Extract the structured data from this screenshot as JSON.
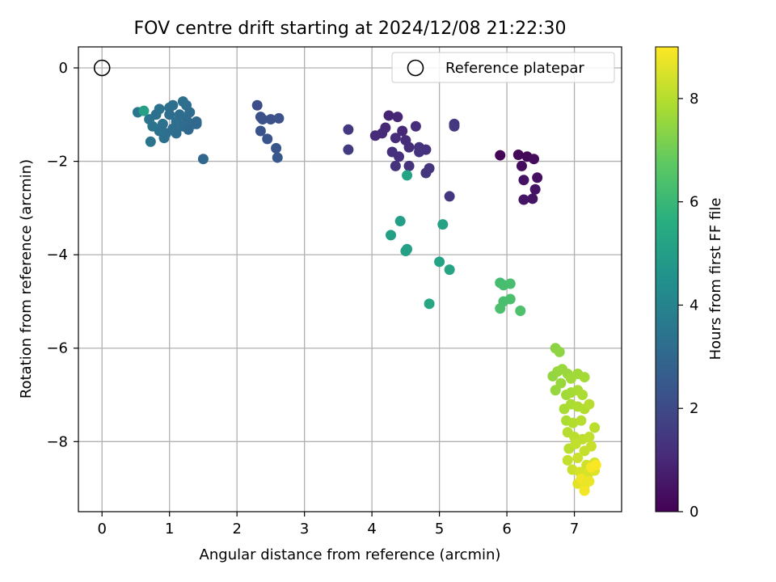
{
  "chart_data": {
    "type": "scatter",
    "title": "FOV centre drift starting at 2024/12/08 21:22:30",
    "xlabel": "Angular distance from reference (arcmin)",
    "ylabel": "Rotation from reference (arcmin)",
    "xlim": [
      -0.35,
      7.7
    ],
    "ylim": [
      -9.5,
      0.45
    ],
    "xticks": [
      0,
      1,
      2,
      3,
      4,
      5,
      6,
      7
    ],
    "yticks": [
      0,
      -2,
      -4,
      -6,
      -8
    ],
    "xtick_labels": [
      "0",
      "1",
      "2",
      "3",
      "4",
      "5",
      "6",
      "7"
    ],
    "ytick_labels": [
      "0",
      "−2",
      "−4",
      "−6",
      "−8"
    ],
    "grid": true,
    "legend": {
      "position": "top-right",
      "label": "Reference platepar",
      "marker": "open-circle"
    },
    "reference_point": {
      "x": 0,
      "y": 0
    },
    "colorbar": {
      "label": "Hours from first FF file",
      "colormap": "viridis",
      "range": [
        0,
        9
      ],
      "ticks": [
        0,
        2,
        4,
        6,
        8
      ],
      "tick_labels": [
        "0",
        "2",
        "4",
        "6",
        "8"
      ]
    },
    "points": [
      {
        "x": 5.9,
        "y": -1.87,
        "c": 0.1
      },
      {
        "x": 6.17,
        "y": -1.86,
        "c": 0.15
      },
      {
        "x": 6.3,
        "y": -1.9,
        "c": 0.2
      },
      {
        "x": 6.4,
        "y": -1.95,
        "c": 0.25
      },
      {
        "x": 6.22,
        "y": -2.1,
        "c": 0.3
      },
      {
        "x": 6.45,
        "y": -2.35,
        "c": 0.35
      },
      {
        "x": 6.25,
        "y": -2.4,
        "c": 0.4
      },
      {
        "x": 6.42,
        "y": -2.6,
        "c": 0.45
      },
      {
        "x": 6.38,
        "y": -2.8,
        "c": 0.5
      },
      {
        "x": 6.25,
        "y": -2.82,
        "c": 0.5
      },
      {
        "x": 4.25,
        "y": -1.02,
        "c": 0.9
      },
      {
        "x": 4.38,
        "y": -1.05,
        "c": 0.95
      },
      {
        "x": 4.2,
        "y": -1.28,
        "c": 1.0
      },
      {
        "x": 4.45,
        "y": -1.35,
        "c": 1.0
      },
      {
        "x": 4.05,
        "y": -1.45,
        "c": 1.05
      },
      {
        "x": 4.15,
        "y": -1.4,
        "c": 1.05
      },
      {
        "x": 4.35,
        "y": -1.5,
        "c": 1.1
      },
      {
        "x": 4.5,
        "y": -1.55,
        "c": 1.1
      },
      {
        "x": 4.65,
        "y": -1.25,
        "c": 1.15
      },
      {
        "x": 4.55,
        "y": -1.7,
        "c": 1.15
      },
      {
        "x": 4.3,
        "y": -1.8,
        "c": 1.2
      },
      {
        "x": 4.4,
        "y": -1.9,
        "c": 1.2
      },
      {
        "x": 4.7,
        "y": -1.7,
        "c": 1.25
      },
      {
        "x": 4.8,
        "y": -1.75,
        "c": 1.25
      },
      {
        "x": 4.35,
        "y": -2.1,
        "c": 1.3
      },
      {
        "x": 4.55,
        "y": -2.1,
        "c": 1.3
      },
      {
        "x": 4.8,
        "y": -2.25,
        "c": 1.35
      },
      {
        "x": 4.85,
        "y": -2.15,
        "c": 1.35
      },
      {
        "x": 5.15,
        "y": -2.75,
        "c": 1.4
      },
      {
        "x": 5.22,
        "y": -1.2,
        "c": 1.4
      },
      {
        "x": 5.22,
        "y": -1.25,
        "c": 1.45
      },
      {
        "x": 3.65,
        "y": -1.32,
        "c": 1.5
      },
      {
        "x": 3.65,
        "y": -1.75,
        "c": 1.55
      },
      {
        "x": 4.7,
        "y": -1.8,
        "c": 1.3
      },
      {
        "x": 2.3,
        "y": -0.8,
        "c": 2.1
      },
      {
        "x": 2.35,
        "y": -1.05,
        "c": 2.15
      },
      {
        "x": 2.38,
        "y": -1.1,
        "c": 2.2
      },
      {
        "x": 2.5,
        "y": -1.1,
        "c": 2.2
      },
      {
        "x": 2.62,
        "y": -1.08,
        "c": 2.25
      },
      {
        "x": 2.35,
        "y": -1.35,
        "c": 2.3
      },
      {
        "x": 2.45,
        "y": -1.52,
        "c": 2.35
      },
      {
        "x": 2.58,
        "y": -1.72,
        "c": 2.4
      },
      {
        "x": 2.6,
        "y": -1.92,
        "c": 2.45
      },
      {
        "x": 0.53,
        "y": -0.95,
        "c": 3.5
      },
      {
        "x": 0.7,
        "y": -1.1,
        "c": 3.45
      },
      {
        "x": 0.85,
        "y": -0.88,
        "c": 3.4
      },
      {
        "x": 1.0,
        "y": -0.85,
        "c": 3.35
      },
      {
        "x": 1.05,
        "y": -0.8,
        "c": 3.3
      },
      {
        "x": 1.2,
        "y": -0.72,
        "c": 3.3
      },
      {
        "x": 1.25,
        "y": -0.8,
        "c": 3.25
      },
      {
        "x": 0.75,
        "y": -1.25,
        "c": 3.4
      },
      {
        "x": 0.9,
        "y": -1.2,
        "c": 3.35
      },
      {
        "x": 0.95,
        "y": -1.4,
        "c": 3.3
      },
      {
        "x": 0.92,
        "y": -1.5,
        "c": 3.3
      },
      {
        "x": 1.05,
        "y": -1.3,
        "c": 3.25
      },
      {
        "x": 1.1,
        "y": -1.15,
        "c": 3.25
      },
      {
        "x": 1.15,
        "y": -1.0,
        "c": 3.2
      },
      {
        "x": 1.2,
        "y": -1.25,
        "c": 3.2
      },
      {
        "x": 1.25,
        "y": -1.1,
        "c": 3.15
      },
      {
        "x": 1.3,
        "y": -0.95,
        "c": 3.15
      },
      {
        "x": 1.35,
        "y": -1.2,
        "c": 3.1
      },
      {
        "x": 1.4,
        "y": -1.15,
        "c": 3.1
      },
      {
        "x": 1.28,
        "y": -1.32,
        "c": 3.05
      },
      {
        "x": 1.0,
        "y": -1.0,
        "c": 3.2
      },
      {
        "x": 0.8,
        "y": -1.0,
        "c": 3.3
      },
      {
        "x": 0.72,
        "y": -1.58,
        "c": 3.45
      },
      {
        "x": 1.5,
        "y": -1.95,
        "c": 3.0
      },
      {
        "x": 1.4,
        "y": -1.2,
        "c": 3.05
      },
      {
        "x": 1.1,
        "y": -1.4,
        "c": 3.2
      },
      {
        "x": 0.85,
        "y": -1.35,
        "c": 3.35
      },
      {
        "x": 0.62,
        "y": -0.92,
        "c": 5.1
      },
      {
        "x": 4.52,
        "y": -2.3,
        "c": 5.2
      },
      {
        "x": 4.42,
        "y": -3.28,
        "c": 5.0
      },
      {
        "x": 4.28,
        "y": -3.58,
        "c": 5.05
      },
      {
        "x": 4.52,
        "y": -3.88,
        "c": 5.1
      },
      {
        "x": 4.5,
        "y": -3.92,
        "c": 5.1
      },
      {
        "x": 5.05,
        "y": -3.35,
        "c": 5.15
      },
      {
        "x": 5.0,
        "y": -4.15,
        "c": 5.2
      },
      {
        "x": 5.15,
        "y": -4.32,
        "c": 5.25
      },
      {
        "x": 4.85,
        "y": -5.05,
        "c": 5.3
      },
      {
        "x": 5.9,
        "y": -4.6,
        "c": 6.2
      },
      {
        "x": 5.95,
        "y": -4.65,
        "c": 6.25
      },
      {
        "x": 6.05,
        "y": -4.62,
        "c": 6.3
      },
      {
        "x": 5.95,
        "y": -5.0,
        "c": 6.3
      },
      {
        "x": 6.05,
        "y": -4.95,
        "c": 6.35
      },
      {
        "x": 5.9,
        "y": -5.15,
        "c": 6.35
      },
      {
        "x": 6.2,
        "y": -5.2,
        "c": 6.4
      },
      {
        "x": 6.72,
        "y": -6.0,
        "c": 7.4
      },
      {
        "x": 6.78,
        "y": -6.08,
        "c": 7.45
      },
      {
        "x": 6.68,
        "y": -6.6,
        "c": 7.5
      },
      {
        "x": 6.75,
        "y": -6.5,
        "c": 7.55
      },
      {
        "x": 6.82,
        "y": -6.45,
        "c": 7.6
      },
      {
        "x": 6.9,
        "y": -6.55,
        "c": 7.6
      },
      {
        "x": 6.95,
        "y": -6.65,
        "c": 7.7
      },
      {
        "x": 7.05,
        "y": -6.55,
        "c": 7.7
      },
      {
        "x": 7.15,
        "y": -6.62,
        "c": 7.75
      },
      {
        "x": 6.72,
        "y": -6.9,
        "c": 7.55
      },
      {
        "x": 6.8,
        "y": -6.75,
        "c": 7.6
      },
      {
        "x": 6.88,
        "y": -7.0,
        "c": 7.7
      },
      {
        "x": 6.95,
        "y": -6.95,
        "c": 7.75
      },
      {
        "x": 7.05,
        "y": -6.9,
        "c": 7.8
      },
      {
        "x": 7.12,
        "y": -7.0,
        "c": 7.85
      },
      {
        "x": 6.85,
        "y": -7.3,
        "c": 7.8
      },
      {
        "x": 6.95,
        "y": -7.2,
        "c": 7.85
      },
      {
        "x": 7.05,
        "y": -7.25,
        "c": 7.9
      },
      {
        "x": 7.15,
        "y": -7.3,
        "c": 7.95
      },
      {
        "x": 7.22,
        "y": -7.2,
        "c": 8.0
      },
      {
        "x": 6.88,
        "y": -7.55,
        "c": 7.85
      },
      {
        "x": 6.98,
        "y": -7.6,
        "c": 7.95
      },
      {
        "x": 7.1,
        "y": -7.55,
        "c": 8.0
      },
      {
        "x": 7.3,
        "y": -7.7,
        "c": 8.05
      },
      {
        "x": 6.9,
        "y": -7.8,
        "c": 8.0
      },
      {
        "x": 7.0,
        "y": -7.9,
        "c": 8.05
      },
      {
        "x": 7.12,
        "y": -7.95,
        "c": 8.1
      },
      {
        "x": 7.22,
        "y": -7.9,
        "c": 8.15
      },
      {
        "x": 6.92,
        "y": -8.15,
        "c": 8.05
      },
      {
        "x": 7.02,
        "y": -8.05,
        "c": 8.15
      },
      {
        "x": 7.15,
        "y": -8.2,
        "c": 8.2
      },
      {
        "x": 7.25,
        "y": -8.1,
        "c": 8.25
      },
      {
        "x": 6.9,
        "y": -8.4,
        "c": 8.2
      },
      {
        "x": 7.05,
        "y": -8.35,
        "c": 8.3
      },
      {
        "x": 7.18,
        "y": -8.5,
        "c": 8.35
      },
      {
        "x": 7.3,
        "y": -8.45,
        "c": 8.4
      },
      {
        "x": 6.97,
        "y": -8.6,
        "c": 8.3
      },
      {
        "x": 7.08,
        "y": -8.65,
        "c": 8.45
      },
      {
        "x": 7.2,
        "y": -8.7,
        "c": 8.5
      },
      {
        "x": 7.3,
        "y": -8.62,
        "c": 8.55
      },
      {
        "x": 7.05,
        "y": -8.9,
        "c": 8.6
      },
      {
        "x": 7.15,
        "y": -8.95,
        "c": 8.7
      },
      {
        "x": 7.22,
        "y": -8.85,
        "c": 8.75
      },
      {
        "x": 7.1,
        "y": -8.8,
        "c": 8.8
      },
      {
        "x": 7.15,
        "y": -9.05,
        "c": 8.85
      },
      {
        "x": 7.25,
        "y": -8.55,
        "c": 8.9
      },
      {
        "x": 7.32,
        "y": -8.5,
        "c": 8.95
      }
    ]
  }
}
